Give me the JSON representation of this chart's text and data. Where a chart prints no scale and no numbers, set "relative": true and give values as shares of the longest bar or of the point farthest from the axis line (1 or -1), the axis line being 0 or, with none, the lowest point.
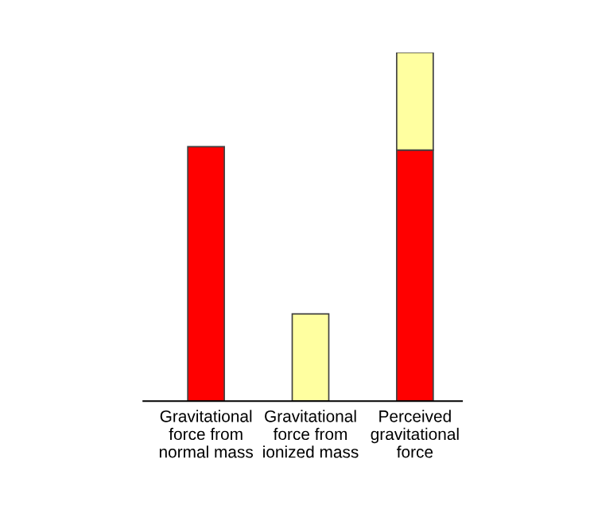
{
  "chart_data": {
    "type": "bar",
    "relative": true,
    "stacked": true,
    "categories": [
      "Gravitational\nforce from\nnormal mass",
      "Gravitational\nforce from\nionized mass",
      "Perceived\ngravitational\nforce"
    ],
    "series": [
      {
        "color": "#ff0000",
        "values": [
          0.73,
          null,
          0.72
        ]
      },
      {
        "color": "#ffffa0",
        "values": [
          null,
          0.25,
          0.28
        ]
      }
    ],
    "grid": false,
    "legend": false
  }
}
